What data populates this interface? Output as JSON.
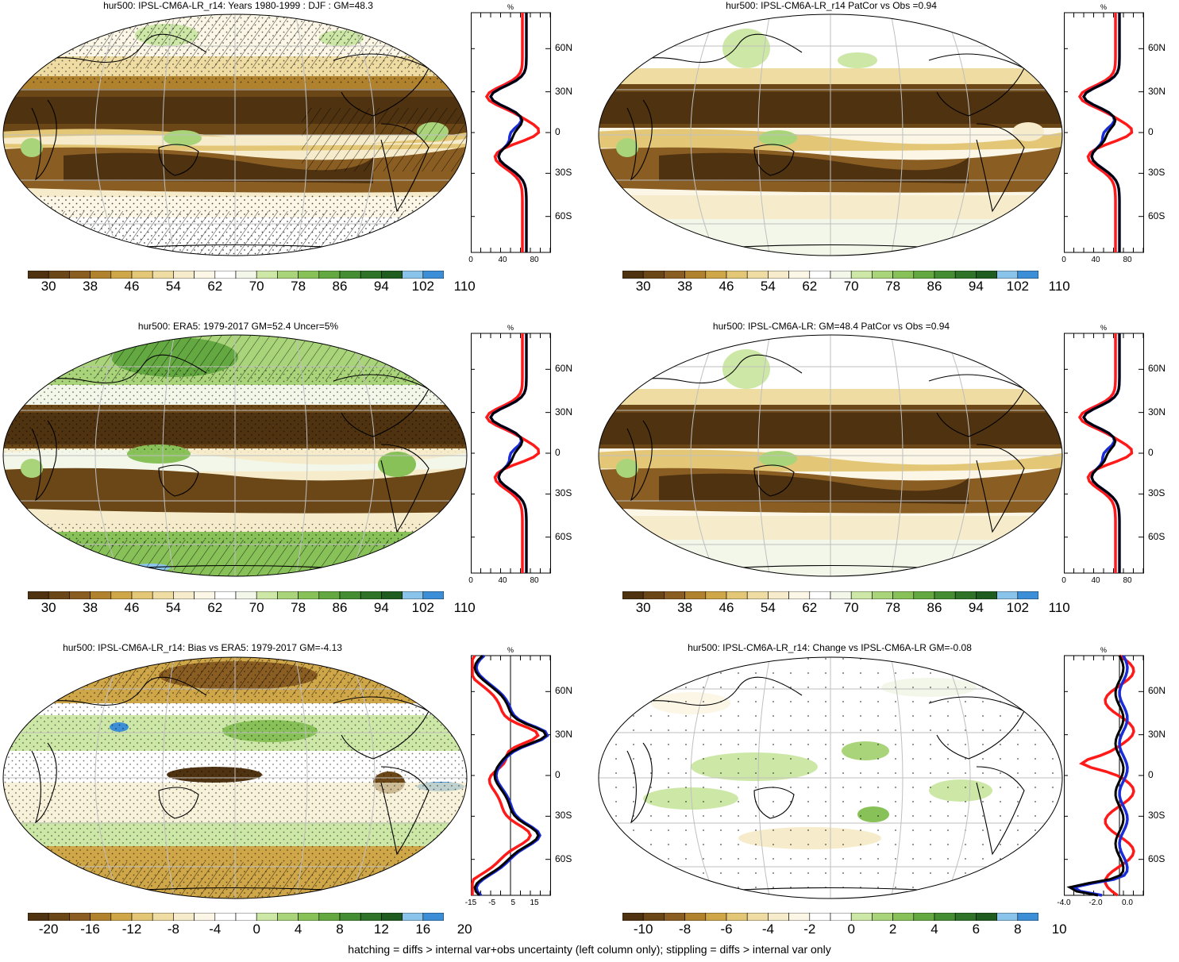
{
  "colors": {
    "brown_dark": "#5a3a14",
    "brown": "#8a5a1c",
    "tan": "#c6963c",
    "beige": "#eed79a",
    "cream": "#f6ecc4",
    "white": "#f8f8fa",
    "green_light": "#c8e49a",
    "green": "#8ec652",
    "green_dark": "#3f8a2c",
    "blue": "#3a8ad2",
    "ocean_line": "#bfbfbf",
    "line_red": "#ff1a1a",
    "line_blue": "#1a2bd8",
    "line_black": "#000000"
  },
  "colorbar_abs": {
    "labels": [
      "30",
      "38",
      "46",
      "54",
      "62",
      "70",
      "78",
      "86",
      "94",
      "102",
      "110"
    ],
    "swatches": [
      "#4f3210",
      "#6b4718",
      "#8a5d22",
      "#b0822e",
      "#cfa748",
      "#e3c777",
      "#efdca2",
      "#f6eccb",
      "#fbf6e6",
      "#ffffff",
      "#f2f7ea",
      "#cde8a6",
      "#a9d47a",
      "#87c158",
      "#63a840",
      "#458d32",
      "#2e7327",
      "#1f5c1f",
      "#8bc4ea",
      "#3c8fd6"
    ]
  },
  "colorbar_bias": {
    "labels": [
      "-20",
      "-16",
      "-12",
      "-8",
      "-4",
      "0",
      "4",
      "8",
      "12",
      "16",
      "20"
    ],
    "swatches": [
      "#4f3210",
      "#6b4718",
      "#8a5d22",
      "#b0822e",
      "#cfa748",
      "#e3c777",
      "#efdca2",
      "#f6eccb",
      "#fbf6e6",
      "#ffffff",
      "#ffffff",
      "#cde8a6",
      "#a9d47a",
      "#87c158",
      "#63a840",
      "#458d32",
      "#2e7327",
      "#1f5c1f",
      "#8bc4ea",
      "#3c8fd6"
    ]
  },
  "colorbar_change": {
    "labels": [
      "-10",
      "-8",
      "-6",
      "-4",
      "-2",
      "0",
      "2",
      "4",
      "6",
      "8",
      "10"
    ],
    "swatches": [
      "#4f3210",
      "#6b4718",
      "#8a5d22",
      "#b0822e",
      "#cfa748",
      "#e3c777",
      "#efdca2",
      "#f6eccb",
      "#fbf6e6",
      "#ffffff",
      "#ffffff",
      "#cde8a6",
      "#a9d47a",
      "#87c158",
      "#63a840",
      "#458d32",
      "#2e7327",
      "#1f5c1f",
      "#8bc4ea",
      "#3c8fd6"
    ]
  },
  "panels": [
    {
      "title": "hur500: IPSL-CM6A-LR_r14: Years 1980-1999 : DJF : GM=48.3",
      "profile": {
        "unit": "%",
        "yticks": [
          "60N",
          "30N",
          "0",
          "30S",
          "60S"
        ],
        "xticks": [
          "0",
          "40",
          "80"
        ],
        "zero_line": false
      }
    },
    {
      "title": "hur500: IPSL-CM6A-LR_r14 PatCor vs Obs =0.94",
      "profile": {
        "unit": "%",
        "yticks": [
          "60N",
          "30N",
          "0",
          "30S",
          "60S"
        ],
        "xticks": [
          "0",
          "40",
          "80"
        ],
        "zero_line": false
      }
    },
    {
      "title": "hur500: ERA5: 1979-2017 GM=52.4 Uncer=5%",
      "profile": {
        "unit": "%",
        "yticks": [
          "60N",
          "30N",
          "0",
          "30S",
          "60S"
        ],
        "xticks": [
          "0",
          "40",
          "80"
        ],
        "zero_line": false
      }
    },
    {
      "title": "hur500: IPSL-CM6A-LR: GM=48.4 PatCor vs Obs =0.94",
      "profile": {
        "unit": "%",
        "yticks": [
          "60N",
          "30N",
          "0",
          "30S",
          "60S"
        ],
        "xticks": [
          "0",
          "40",
          "80"
        ],
        "zero_line": false
      }
    },
    {
      "title": "hur500: IPSL-CM6A-LR_r14: Bias vs ERA5: 1979-2017 GM=-4.13",
      "profile": {
        "unit": "%",
        "yticks": [
          "60N",
          "30N",
          "0",
          "30S",
          "60S"
        ],
        "xticks": [
          "-15",
          "-5",
          "5",
          "15"
        ],
        "zero_line": true
      }
    },
    {
      "title": "hur500: IPSL-CM6A-LR_r14: Change vs IPSL-CM6A-LR GM=-0.08",
      "profile": {
        "unit": "%",
        "yticks": [
          "60N",
          "30N",
          "0",
          "30S",
          "60S"
        ],
        "xticks": [
          "-4.0",
          "-2.0",
          "0.0"
        ],
        "zero_line": true
      }
    }
  ],
  "footnote": "hatching = diffs > internal var+obs uncertainty (left column only); stippling = diffs > internal var only"
}
